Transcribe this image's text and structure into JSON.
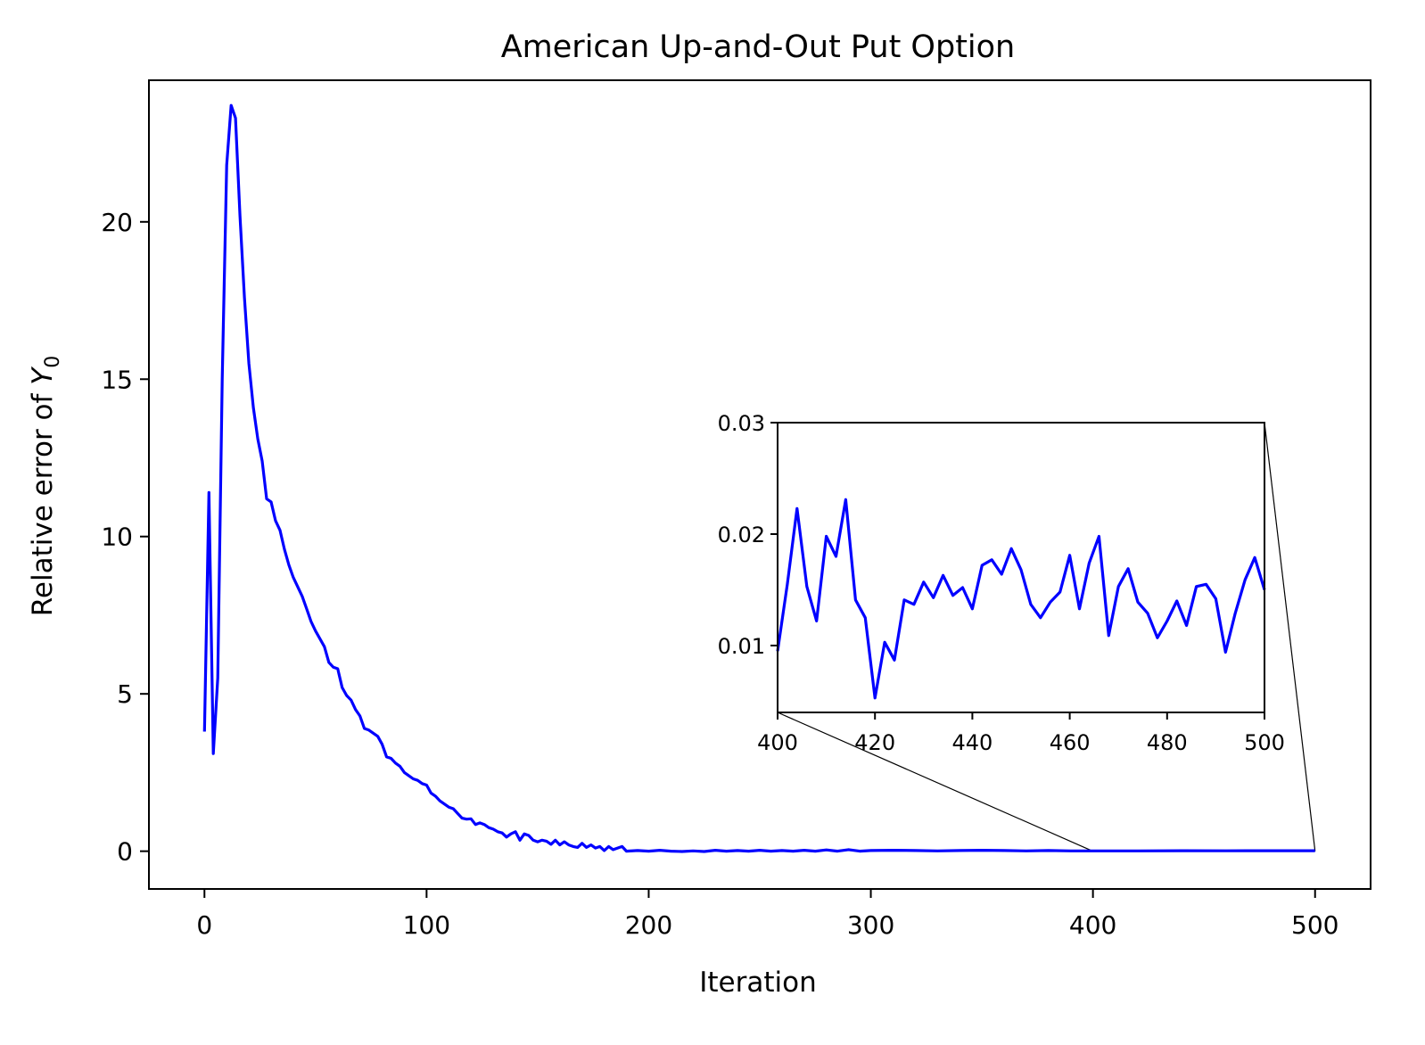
{
  "chart_data": {
    "type": "line",
    "title": "American Up-and-Out Put Option",
    "xlabel": "Iteration",
    "ylabel_prefix": "Relative error of ",
    "ylabel_symbol": "Y",
    "ylabel_subscript": "0",
    "xlim": [
      -25,
      525
    ],
    "ylim": [
      -1.2,
      24.5
    ],
    "xticks": [
      0,
      100,
      200,
      300,
      400,
      500
    ],
    "yticks": [
      0,
      5,
      10,
      15,
      20
    ],
    "line_color": "#0000ff",
    "grid": false,
    "legend": "none",
    "main_series": [
      [
        0,
        3.8
      ],
      [
        2,
        11.4
      ],
      [
        4,
        3.1
      ],
      [
        6,
        5.5
      ],
      [
        8,
        15.0
      ],
      [
        10,
        21.8
      ],
      [
        12,
        23.7
      ],
      [
        14,
        23.3
      ],
      [
        16,
        20.2
      ],
      [
        18,
        17.6
      ],
      [
        20,
        15.5
      ],
      [
        22,
        14.1
      ],
      [
        24,
        13.1
      ],
      [
        26,
        12.4
      ],
      [
        28,
        11.2
      ],
      [
        30,
        11.1
      ],
      [
        32,
        10.5
      ],
      [
        34,
        10.2
      ],
      [
        36,
        9.6
      ],
      [
        38,
        9.1
      ],
      [
        40,
        8.7
      ],
      [
        42,
        8.4
      ],
      [
        44,
        8.1
      ],
      [
        46,
        7.7
      ],
      [
        48,
        7.3
      ],
      [
        50,
        7.0
      ],
      [
        52,
        6.75
      ],
      [
        54,
        6.5
      ],
      [
        56,
        6.0
      ],
      [
        58,
        5.85
      ],
      [
        60,
        5.8
      ],
      [
        62,
        5.2
      ],
      [
        64,
        4.95
      ],
      [
        66,
        4.8
      ],
      [
        68,
        4.5
      ],
      [
        70,
        4.3
      ],
      [
        72,
        3.9
      ],
      [
        74,
        3.85
      ],
      [
        76,
        3.75
      ],
      [
        78,
        3.65
      ],
      [
        80,
        3.4
      ],
      [
        82,
        3.0
      ],
      [
        84,
        2.95
      ],
      [
        86,
        2.8
      ],
      [
        88,
        2.7
      ],
      [
        90,
        2.5
      ],
      [
        92,
        2.4
      ],
      [
        94,
        2.3
      ],
      [
        96,
        2.25
      ],
      [
        98,
        2.15
      ],
      [
        100,
        2.1
      ],
      [
        102,
        1.85
      ],
      [
        104,
        1.75
      ],
      [
        106,
        1.6
      ],
      [
        108,
        1.5
      ],
      [
        110,
        1.4
      ],
      [
        112,
        1.35
      ],
      [
        114,
        1.2
      ],
      [
        116,
        1.05
      ],
      [
        118,
        1.02
      ],
      [
        120,
        1.03
      ],
      [
        122,
        0.85
      ],
      [
        124,
        0.9
      ],
      [
        126,
        0.85
      ],
      [
        128,
        0.75
      ],
      [
        130,
        0.7
      ],
      [
        132,
        0.62
      ],
      [
        134,
        0.58
      ],
      [
        136,
        0.45
      ],
      [
        138,
        0.55
      ],
      [
        140,
        0.62
      ],
      [
        142,
        0.35
      ],
      [
        144,
        0.55
      ],
      [
        146,
        0.5
      ],
      [
        148,
        0.35
      ],
      [
        150,
        0.3
      ],
      [
        152,
        0.35
      ],
      [
        154,
        0.32
      ],
      [
        156,
        0.22
      ],
      [
        158,
        0.35
      ],
      [
        160,
        0.2
      ],
      [
        162,
        0.3
      ],
      [
        164,
        0.2
      ],
      [
        166,
        0.15
      ],
      [
        168,
        0.12
      ],
      [
        170,
        0.25
      ],
      [
        172,
        0.12
      ],
      [
        174,
        0.2
      ],
      [
        176,
        0.1
      ],
      [
        178,
        0.15
      ],
      [
        180,
        0.02
      ],
      [
        182,
        0.15
      ],
      [
        184,
        0.05
      ],
      [
        186,
        0.1
      ],
      [
        188,
        0.15
      ],
      [
        190,
        0.0
      ],
      [
        195,
        0.02
      ],
      [
        200,
        0.0
      ],
      [
        205,
        0.03
      ],
      [
        210,
        0.0
      ],
      [
        215,
        -0.01
      ],
      [
        220,
        0.01
      ],
      [
        225,
        -0.01
      ],
      [
        230,
        0.03
      ],
      [
        235,
        0.0
      ],
      [
        240,
        0.02
      ],
      [
        245,
        0.0
      ],
      [
        250,
        0.03
      ],
      [
        255,
        0.0
      ],
      [
        260,
        0.02
      ],
      [
        265,
        0.0
      ],
      [
        270,
        0.03
      ],
      [
        275,
        0.0
      ],
      [
        280,
        0.04
      ],
      [
        285,
        0.0
      ],
      [
        290,
        0.05
      ],
      [
        295,
        0.0
      ],
      [
        300,
        0.02
      ],
      [
        310,
        0.03
      ],
      [
        320,
        0.02
      ],
      [
        330,
        0.01
      ],
      [
        340,
        0.02
      ],
      [
        350,
        0.03
      ],
      [
        360,
        0.02
      ],
      [
        370,
        0.01
      ],
      [
        380,
        0.02
      ],
      [
        390,
        0.01
      ],
      [
        400,
        0.01
      ],
      [
        420,
        0.01
      ],
      [
        440,
        0.015
      ],
      [
        460,
        0.012
      ],
      [
        480,
        0.015
      ],
      [
        500,
        0.015
      ]
    ],
    "inset": {
      "xlim": [
        400,
        500
      ],
      "ylim": [
        0.004,
        0.03
      ],
      "xticks": [
        400,
        420,
        440,
        460,
        480,
        500
      ],
      "yticks": [
        0.01,
        0.02,
        0.03
      ],
      "ytick_labels": [
        "0.01",
        "0.02",
        "0.03"
      ],
      "series": [
        [
          400,
          0.0095
        ],
        [
          402,
          0.0155
        ],
        [
          404,
          0.0223
        ],
        [
          406,
          0.0153
        ],
        [
          408,
          0.0122
        ],
        [
          410,
          0.0198
        ],
        [
          412,
          0.018
        ],
        [
          414,
          0.0231
        ],
        [
          416,
          0.0141
        ],
        [
          418,
          0.0125
        ],
        [
          420,
          0.0053
        ],
        [
          422,
          0.0103
        ],
        [
          424,
          0.0087
        ],
        [
          426,
          0.0141
        ],
        [
          428,
          0.0137
        ],
        [
          430,
          0.0157
        ],
        [
          432,
          0.0143
        ],
        [
          434,
          0.0163
        ],
        [
          436,
          0.0145
        ],
        [
          438,
          0.0152
        ],
        [
          440,
          0.0133
        ],
        [
          442,
          0.0172
        ],
        [
          444,
          0.0177
        ],
        [
          446,
          0.0164
        ],
        [
          448,
          0.0187
        ],
        [
          450,
          0.0168
        ],
        [
          452,
          0.0137
        ],
        [
          454,
          0.0125
        ],
        [
          456,
          0.0139
        ],
        [
          458,
          0.0148
        ],
        [
          460,
          0.0181
        ],
        [
          462,
          0.0133
        ],
        [
          464,
          0.0174
        ],
        [
          466,
          0.0198
        ],
        [
          468,
          0.0109
        ],
        [
          470,
          0.0153
        ],
        [
          472,
          0.0169
        ],
        [
          474,
          0.0139
        ],
        [
          476,
          0.0129
        ],
        [
          478,
          0.0107
        ],
        [
          480,
          0.0122
        ],
        [
          482,
          0.014
        ],
        [
          484,
          0.0118
        ],
        [
          486,
          0.0153
        ],
        [
          488,
          0.0155
        ],
        [
          490,
          0.0142
        ],
        [
          492,
          0.0094
        ],
        [
          494,
          0.0129
        ],
        [
          496,
          0.0159
        ],
        [
          498,
          0.0179
        ],
        [
          500,
          0.015
        ]
      ]
    }
  }
}
